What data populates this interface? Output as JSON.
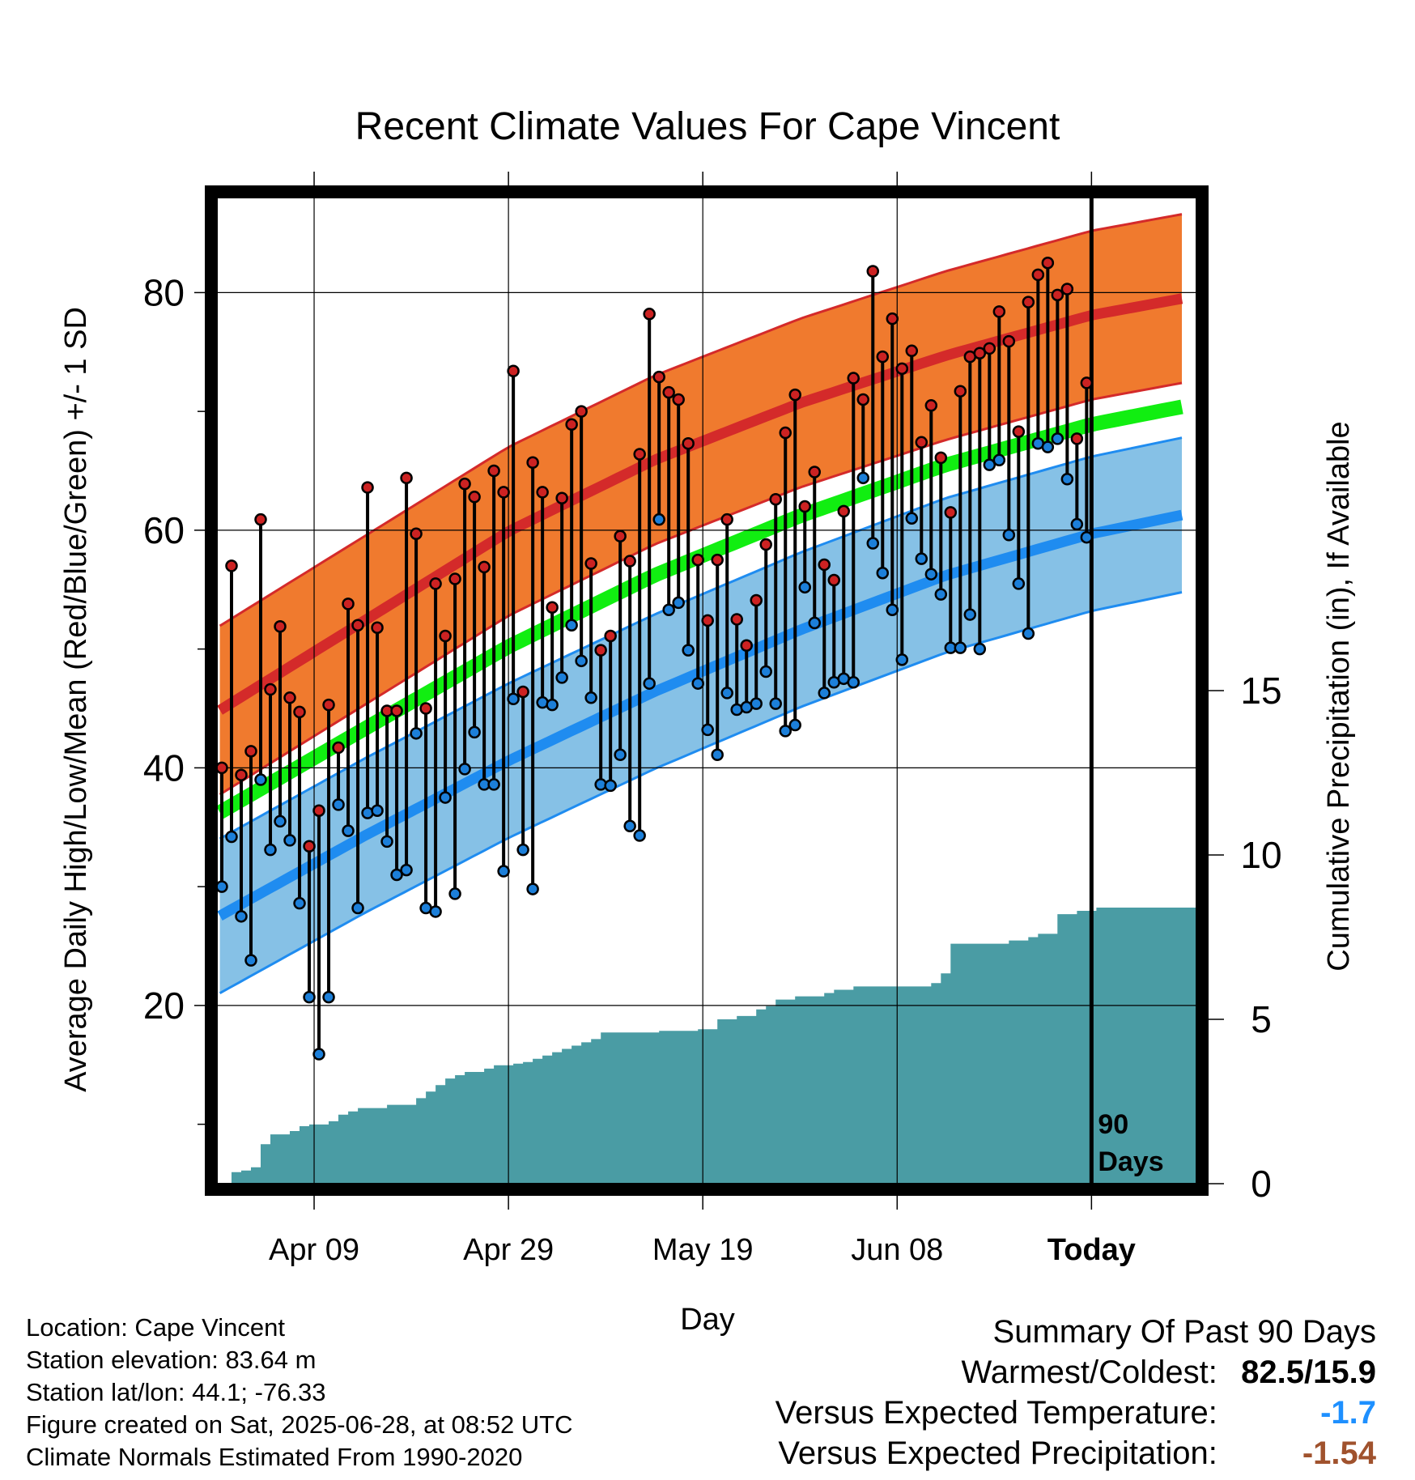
{
  "chart_data": {
    "type": "line",
    "title": "Recent Climate Values For Cape Vincent",
    "xlabel": "Day",
    "ylabel": "Average Daily High/Low/Mean (Red/Blue/Green) +/- 1 SD",
    "y2label": "Cumulative Precipitation (in), If Available",
    "x_tick_labels": [
      "Apr 09",
      "Apr 29",
      "May 19",
      "Jun 08",
      "Today"
    ],
    "x_tick_day_index": [
      10,
      30,
      50,
      70,
      90
    ],
    "x_range_days": [
      -11,
      11
    ],
    "ylim": [
      5,
      88
    ],
    "y_ticks_major": [
      20,
      40,
      60,
      80
    ],
    "y_ticks_minor": [
      10,
      30,
      50,
      70
    ],
    "y2lim": [
      0,
      30
    ],
    "y2_ticks": [
      0,
      5,
      10,
      15
    ],
    "grid": true,
    "today_marker_label": "90 Days",
    "normals": {
      "days": [
        0,
        15,
        30,
        45,
        60,
        75,
        90,
        100
      ],
      "high_mean": [
        44.7,
        52.3,
        59.9,
        65.9,
        70.7,
        74.7,
        78.1,
        79.6
      ],
      "high_sd": 7.1,
      "low_mean": [
        27.4,
        34.2,
        40.6,
        46.4,
        51.6,
        56.2,
        59.7,
        61.4
      ],
      "low_sd": 6.5,
      "mean": [
        36.1,
        43.2,
        50.2,
        56.2,
        61.2,
        65.5,
        68.9,
        70.5
      ]
    },
    "daily_highs": [
      40.0,
      57.0,
      39.4,
      41.4,
      60.9,
      46.6,
      51.9,
      45.9,
      44.7,
      33.4,
      36.4,
      45.3,
      41.7,
      53.8,
      52.0,
      63.6,
      51.8,
      44.8,
      44.8,
      64.4,
      59.7,
      45.0,
      55.5,
      51.1,
      55.9,
      63.9,
      62.8,
      56.9,
      65.0,
      63.2,
      73.4,
      46.4,
      65.7,
      63.2,
      53.5,
      62.7,
      68.9,
      70.0,
      57.2,
      49.9,
      51.1,
      59.5,
      57.4,
      66.4,
      78.2,
      72.9,
      71.6,
      71.0,
      67.3,
      57.5,
      52.4,
      57.5,
      60.9,
      52.5,
      50.3,
      54.1,
      58.8,
      62.6,
      68.2,
      71.4,
      62.0,
      64.9,
      57.1,
      55.8,
      61.6,
      72.8,
      71.0,
      81.8,
      74.6,
      77.8,
      73.6,
      75.1,
      67.4,
      70.5,
      66.1,
      61.5,
      71.7,
      74.6,
      74.9,
      75.3,
      78.4,
      75.9,
      68.3,
      79.2,
      81.5,
      82.5,
      79.8,
      80.3,
      67.7,
      72.4
    ],
    "daily_lows": [
      30.0,
      34.2,
      27.5,
      23.8,
      39.0,
      33.1,
      35.5,
      33.9,
      28.6,
      20.7,
      15.9,
      20.7,
      36.9,
      34.7,
      28.2,
      36.2,
      36.4,
      33.8,
      31.0,
      31.4,
      42.9,
      28.2,
      27.9,
      37.5,
      29.4,
      39.9,
      43.0,
      38.6,
      38.6,
      31.3,
      45.8,
      33.1,
      29.8,
      45.5,
      45.3,
      47.6,
      52.0,
      49.0,
      45.9,
      38.6,
      38.5,
      41.1,
      35.1,
      34.3,
      47.1,
      60.9,
      53.3,
      53.9,
      49.9,
      47.1,
      43.2,
      41.1,
      46.3,
      44.9,
      45.1,
      45.4,
      48.1,
      45.4,
      43.1,
      43.6,
      55.2,
      52.2,
      46.3,
      47.2,
      47.5,
      47.2,
      64.4,
      58.9,
      56.4,
      53.3,
      49.1,
      61.0,
      57.6,
      56.3,
      54.6,
      50.1,
      50.1,
      52.9,
      50.0,
      65.5,
      65.9,
      59.6,
      55.5,
      51.3,
      67.3,
      67.0,
      67.7,
      64.3,
      60.5,
      59.4
    ],
    "precip_cumulative": [
      0.0,
      0.35,
      0.4,
      0.5,
      1.2,
      1.5,
      1.5,
      1.6,
      1.75,
      1.8,
      1.8,
      1.9,
      2.1,
      2.2,
      2.3,
      2.3,
      2.3,
      2.4,
      2.4,
      2.4,
      2.6,
      2.8,
      3.0,
      3.2,
      3.3,
      3.4,
      3.4,
      3.5,
      3.6,
      3.6,
      3.65,
      3.7,
      3.8,
      3.9,
      4.0,
      4.1,
      4.2,
      4.3,
      4.4,
      4.6,
      4.6,
      4.6,
      4.6,
      4.6,
      4.6,
      4.65,
      4.65,
      4.65,
      4.65,
      4.7,
      4.7,
      5.0,
      5.0,
      5.1,
      5.1,
      5.3,
      5.4,
      5.6,
      5.6,
      5.7,
      5.7,
      5.7,
      5.8,
      5.9,
      5.9,
      6.0,
      6.0,
      6.0,
      6.0,
      6.0,
      6.0,
      6.0,
      6.0,
      6.1,
      6.4,
      7.3,
      7.3,
      7.3,
      7.3,
      7.3,
      7.3,
      7.4,
      7.4,
      7.5,
      7.6,
      7.6,
      8.2,
      8.2,
      8.3,
      8.3,
      8.4
    ]
  },
  "footer": {
    "location": "Location: Cape Vincent",
    "elevation": "Station elevation: 83.64 m",
    "latlon": "Station lat/lon: 44.1; -76.33",
    "created": "Figure created on Sat, 2025-06-28, at 08:52 UTC",
    "normals": "Climate Normals Estimated From 1990-2020"
  },
  "summary": {
    "title": "Summary Of Past 90 Days",
    "warmest_label": "Warmest/Coldest:",
    "warmest_value": "82.5/15.9",
    "temp_label": "Versus Expected Temperature:",
    "temp_value": "-1.7",
    "temp_color": "#1e90ff",
    "precip_label": "Versus Expected Precipitation:",
    "precip_value": "-1.54",
    "precip_color": "#a0522d"
  },
  "colors": {
    "high_band": "#f07a2e",
    "high_line": "#d42a2a",
    "low_band": "#86c1e6",
    "low_line": "#1f8cf0",
    "mean_line": "#11ee11",
    "precip": "#4a9ca4",
    "high_dot": "#cc2222",
    "low_dot": "#1c7fd9"
  }
}
